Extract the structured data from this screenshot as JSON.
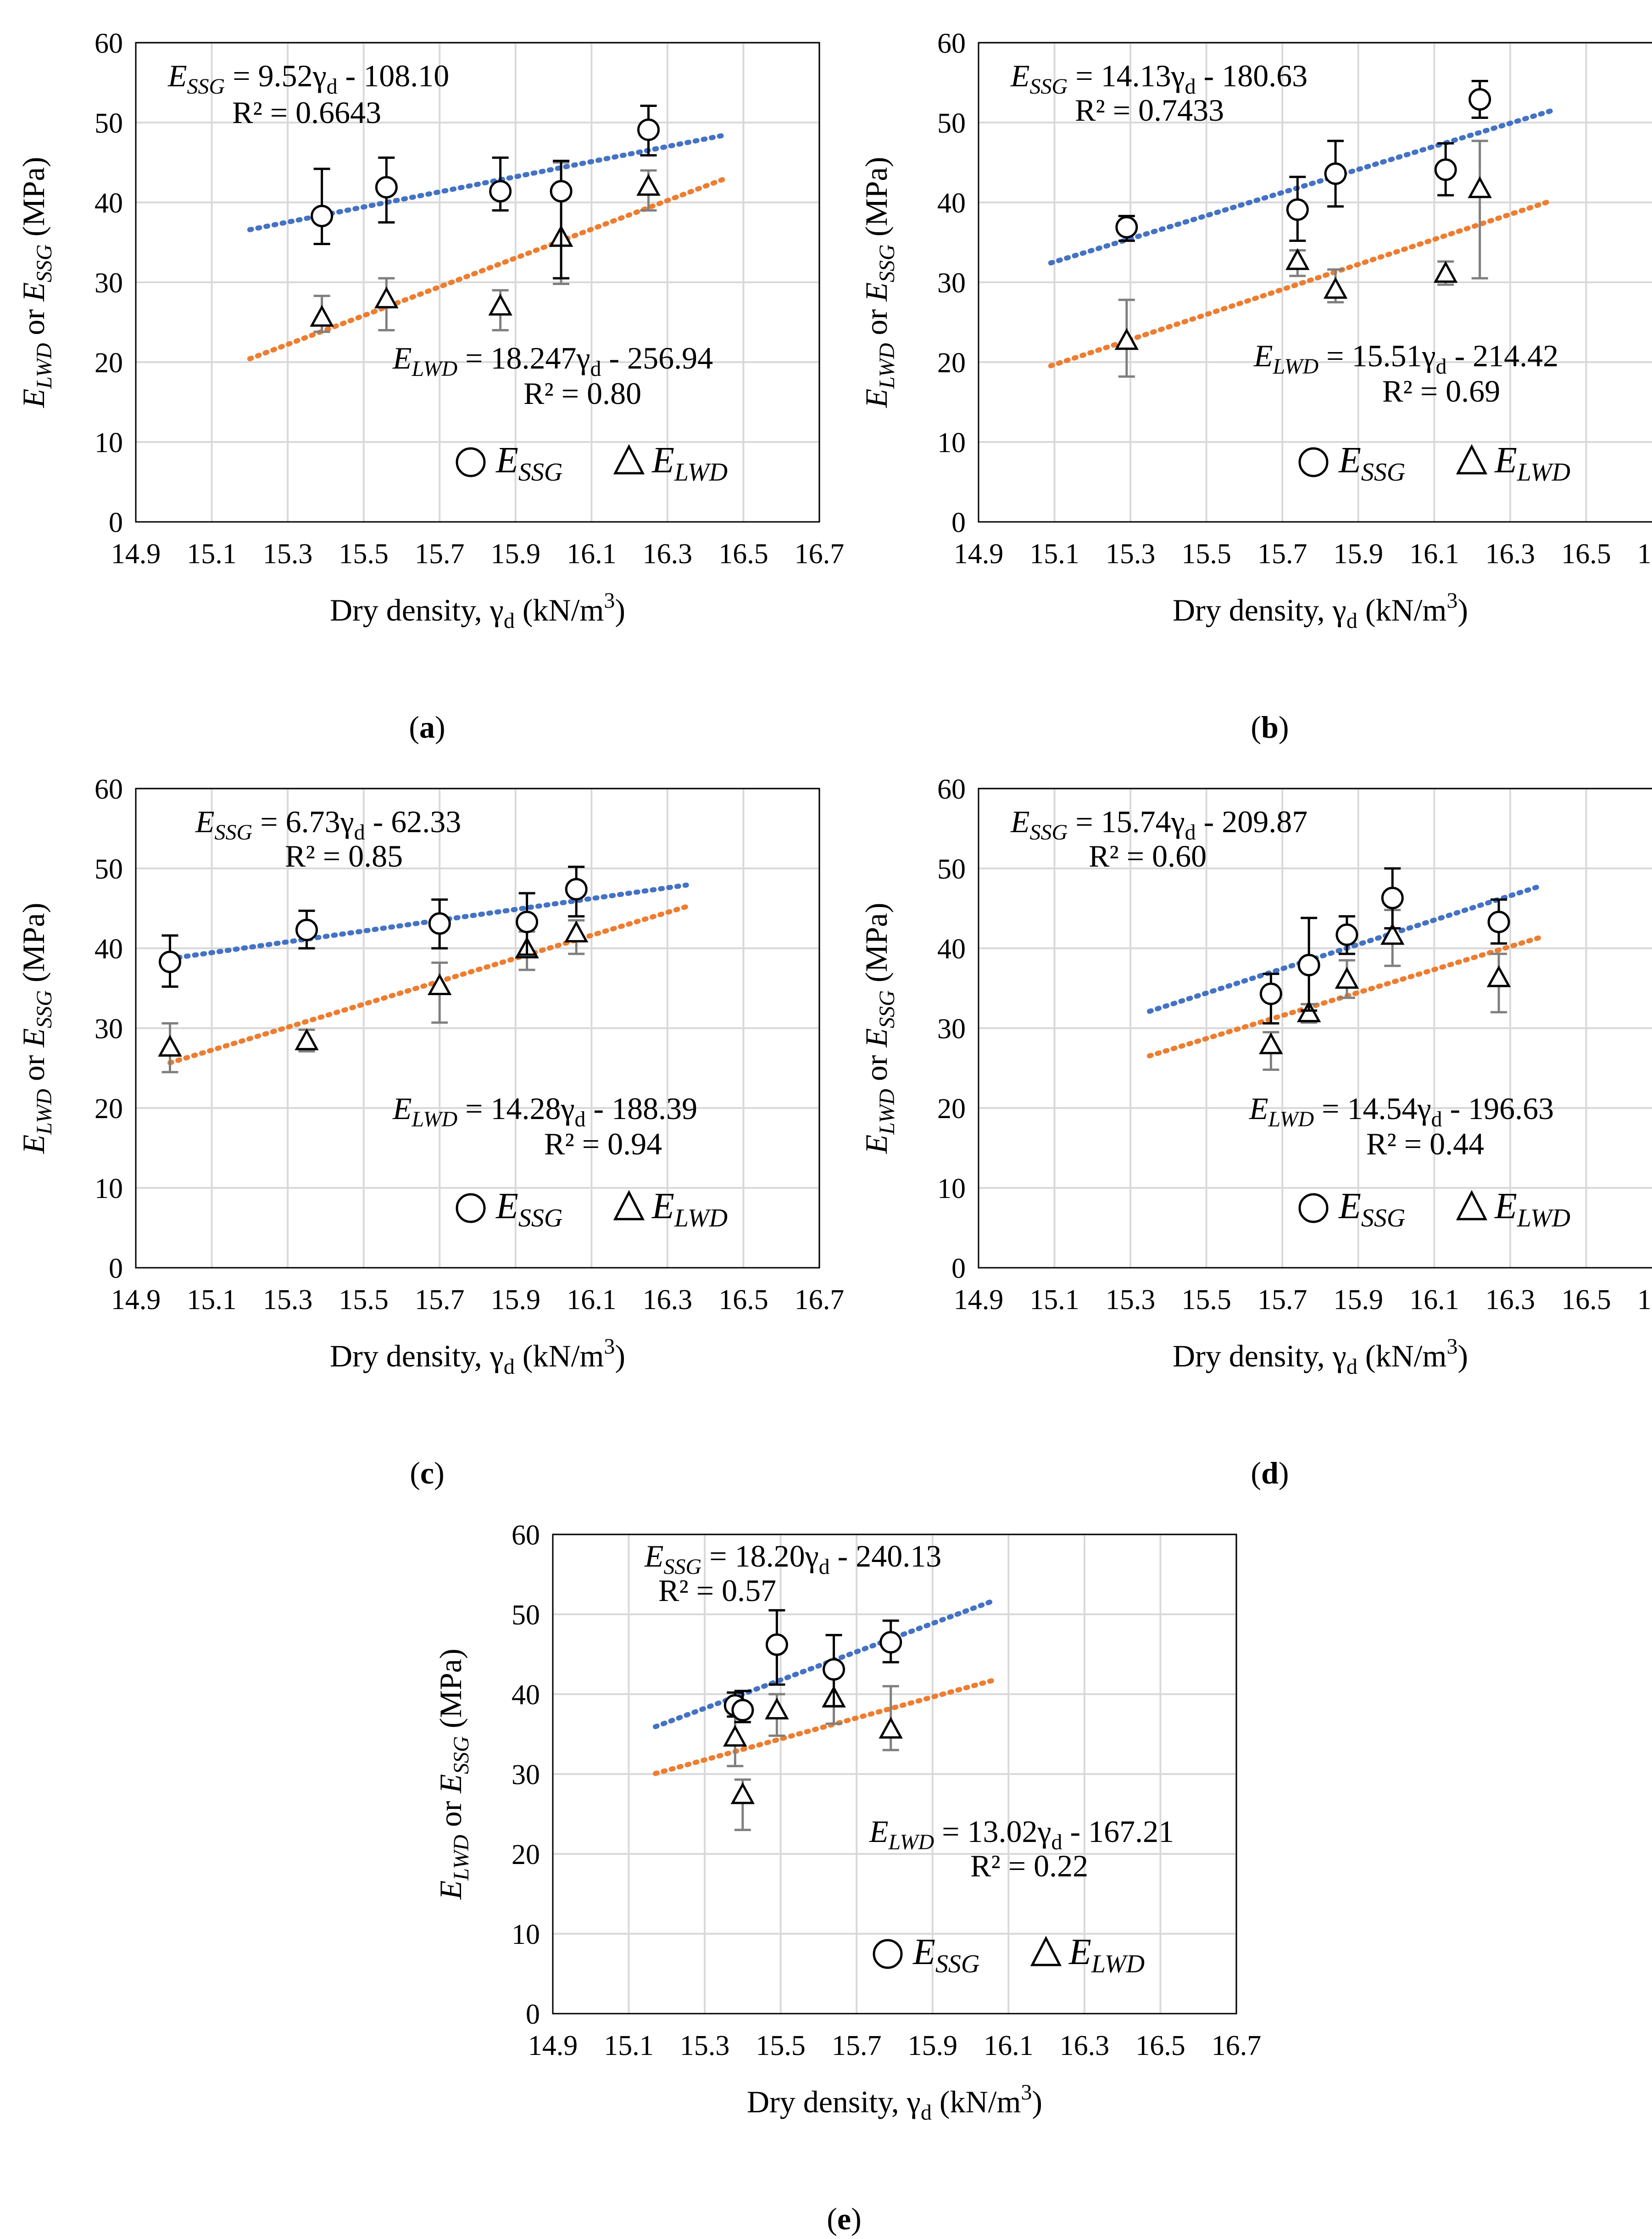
{
  "figure": {
    "axes_common": {
      "xlabel": "Dry density, γ",
      "xlabel_sub": "d",
      "xlabel_unit": " (kN/m",
      "xlabel_sup": "3",
      "xlabel_end": ")",
      "ylabel_E": "E",
      "ylabel_lwd": "LWD",
      "ylabel_or": " or ",
      "ylabel_ssg": "SSG",
      "ylabel_unit": " (MPa)",
      "xticks": [
        "14.9",
        "15.1",
        "15.3",
        "15.5",
        "15.7",
        "15.9",
        "16.1",
        "16.3",
        "16.5",
        "16.7"
      ],
      "yticks": [
        "0",
        "10",
        "20",
        "30",
        "40",
        "50",
        "60"
      ],
      "legend_ssg_E": "E",
      "legend_ssg_sub": "SSG",
      "legend_lwd_E": "E",
      "legend_lwd_sub": "LWD"
    },
    "colors": {
      "ssg_trend": "#4472C4",
      "lwd_trend": "#ED7D31",
      "ssg_marker": "#000000",
      "lwd_marker": "#000000",
      "lwd_errorbar": "#7F7F7F",
      "grid": "#D9D9D9"
    }
  },
  "chart_data": [
    {
      "panel": "(a)",
      "panel_letter": "a",
      "type": "scatter",
      "xlim": [
        14.9,
        16.7
      ],
      "ylim": [
        0,
        60
      ],
      "ssg": {
        "eq_lhs": "E",
        "eq_lhs_sub": "SSG",
        "eq_rhs": " = 9.52γ",
        "eq_rhs_sub": "d",
        "eq_tail": " - 108.10",
        "r2": "R² = 0.6643",
        "points": [
          [
            15.39,
            38.3,
            34.8,
            44.2
          ],
          [
            15.56,
            41.9,
            37.5,
            45.6
          ],
          [
            15.86,
            41.4,
            39.0,
            45.6
          ],
          [
            16.02,
            41.4,
            30.5,
            45.2
          ],
          [
            16.25,
            49.1,
            45.9,
            52.1
          ]
        ],
        "trend_x": [
          15.2,
          16.45
        ]
      },
      "lwd": {
        "eq_lhs": "E",
        "eq_lhs_sub": "LWD",
        "eq_rhs": " = 18.247γ",
        "eq_rhs_sub": "d",
        "eq_tail": " - 256.94",
        "r2": "R² = 0.80",
        "points": [
          [
            15.39,
            25.5,
            23.8,
            28.3
          ],
          [
            15.56,
            27.8,
            24.0,
            30.5
          ],
          [
            15.86,
            26.9,
            24.0,
            29.0
          ],
          [
            16.02,
            35.5,
            29.8,
            45.0
          ],
          [
            16.25,
            41.9,
            39.0,
            44.0
          ]
        ],
        "trend_x": [
          15.2,
          16.45
        ]
      }
    },
    {
      "panel": "(b)",
      "panel_letter": "b",
      "type": "scatter",
      "xlim": [
        14.9,
        16.7
      ],
      "ylim": [
        0,
        60
      ],
      "ssg": {
        "eq_lhs": "E",
        "eq_lhs_sub": "SSG",
        "eq_rhs": " = 14.13γ",
        "eq_rhs_sub": "d",
        "eq_tail": " - 180.63",
        "r2": "R² = 0.7433",
        "points": [
          [
            15.29,
            36.9,
            35.2,
            38.3
          ],
          [
            15.74,
            39.1,
            35.2,
            43.2
          ],
          [
            15.84,
            43.6,
            39.5,
            47.7
          ],
          [
            16.13,
            44.1,
            40.9,
            47.4
          ],
          [
            16.22,
            52.9,
            50.6,
            55.2
          ]
        ],
        "trend_x": [
          15.09,
          16.41
        ]
      },
      "lwd": {
        "eq_lhs": "E",
        "eq_lhs_sub": "LWD",
        "eq_rhs": " = 15.51γ",
        "eq_rhs_sub": "d",
        "eq_tail": " - 214.42",
        "r2": "R² = 0.69",
        "points": [
          [
            15.29,
            22.6,
            18.2,
            27.8
          ],
          [
            15.74,
            32.6,
            30.8,
            34.0
          ],
          [
            15.84,
            29.0,
            27.5,
            31.6
          ],
          [
            16.13,
            31.0,
            29.7,
            32.6
          ],
          [
            16.22,
            41.6,
            30.5,
            47.7
          ]
        ],
        "trend_x": [
          15.09,
          16.41
        ]
      }
    },
    {
      "panel": "(c)",
      "panel_letter": "c",
      "type": "scatter",
      "xlim": [
        14.9,
        16.7
      ],
      "ylim": [
        0,
        60
      ],
      "ssg": {
        "eq_lhs": "E",
        "eq_lhs_sub": "SSG",
        "eq_rhs": " = 6.73γ",
        "eq_rhs_sub": "d",
        "eq_tail": "  - 62.33",
        "r2": "R² = 0.85",
        "points": [
          [
            14.99,
            38.3,
            35.2,
            41.6
          ],
          [
            15.35,
            42.3,
            40.0,
            44.7
          ],
          [
            15.7,
            43.1,
            40.0,
            46.1
          ],
          [
            15.93,
            43.3,
            39.2,
            46.9
          ],
          [
            16.06,
            47.4,
            44.0,
            50.2
          ]
        ],
        "trend_x": [
          14.99,
          16.35
        ]
      },
      "lwd": {
        "eq_lhs": "E",
        "eq_lhs_sub": "LWD",
        "eq_rhs": " = 14.28γ",
        "eq_rhs_sub": "d",
        "eq_tail": " - 188.39",
        "r2": "R² = 0.94",
        "points": [
          [
            14.99,
            27.5,
            24.5,
            30.6
          ],
          [
            15.35,
            28.3,
            27.1,
            29.8
          ],
          [
            15.7,
            35.2,
            30.7,
            38.2
          ],
          [
            15.93,
            39.8,
            37.3,
            42.1
          ],
          [
            16.06,
            41.8,
            39.3,
            43.5
          ]
        ],
        "trend_x": [
          14.99,
          16.35
        ]
      }
    },
    {
      "panel": "(d)",
      "panel_letter": "d",
      "type": "scatter",
      "xlim": [
        14.9,
        16.7
      ],
      "ylim": [
        0,
        60
      ],
      "ssg": {
        "eq_lhs": "E",
        "eq_lhs_sub": "SSG",
        "eq_rhs": " = 15.74γ",
        "eq_rhs_sub": "d",
        "eq_tail": "  - 209.87",
        "r2": "R² = 0.60",
        "points": [
          [
            15.67,
            34.3,
            30.6,
            36.8
          ],
          [
            15.77,
            37.9,
            32.2,
            43.8
          ],
          [
            15.87,
            41.7,
            39.3,
            44.0
          ],
          [
            15.99,
            46.3,
            42.5,
            50.0
          ],
          [
            16.27,
            43.3,
            40.6,
            46.1
          ]
        ],
        "trend_x": [
          15.35,
          16.38
        ]
      },
      "lwd": {
        "eq_lhs": "E",
        "eq_lhs_sub": "LWD",
        "eq_rhs": " = 14.54γ",
        "eq_rhs_sub": "d",
        "eq_tail": " - 196.63",
        "r2": "R² = 0.44",
        "points": [
          [
            15.67,
            27.8,
            24.8,
            29.5
          ],
          [
            15.77,
            31.8,
            30.7,
            33.0
          ],
          [
            15.87,
            36.0,
            33.8,
            38.5
          ],
          [
            15.99,
            41.5,
            37.8,
            44.8
          ],
          [
            16.27,
            36.2,
            32.0,
            39.3
          ]
        ],
        "trend_x": [
          15.35,
          16.38
        ]
      }
    },
    {
      "panel": "(e)",
      "panel_letter": "e",
      "type": "scatter",
      "xlim": [
        14.9,
        16.7
      ],
      "ylim": [
        0,
        60
      ],
      "ssg": {
        "eq_lhs": "E",
        "eq_lhs_sub": "SSG",
        "eq_rhs": " = 18.20γ",
        "eq_rhs_sub": "d",
        "eq_tail": "  - 240.13",
        "r2": "R² = 0.57",
        "points": [
          [
            15.38,
            38.6,
            37.2,
            40.2
          ],
          [
            15.4,
            38.0,
            36.5,
            40.4
          ],
          [
            15.49,
            46.2,
            41.2,
            50.5
          ],
          [
            15.64,
            43.1,
            38.5,
            47.4
          ],
          [
            15.79,
            46.5,
            44.0,
            49.2
          ]
        ],
        "trend_x": [
          15.17,
          16.06
        ]
      },
      "lwd": {
        "eq_lhs": "E",
        "eq_lhs_sub": "LWD",
        "eq_rhs": " = 13.02γ",
        "eq_rhs_sub": "d",
        "eq_tail": " - 167.21",
        "r2": "R² = 0.22",
        "points": [
          [
            15.38,
            34.5,
            31.0,
            37.7
          ],
          [
            15.4,
            27.3,
            23.0,
            29.3
          ],
          [
            15.49,
            37.9,
            34.8,
            40.0
          ],
          [
            15.64,
            39.4,
            36.3,
            43.1
          ],
          [
            15.79,
            35.5,
            33.0,
            41.0
          ]
        ],
        "trend_x": [
          15.17,
          16.06
        ]
      }
    }
  ]
}
